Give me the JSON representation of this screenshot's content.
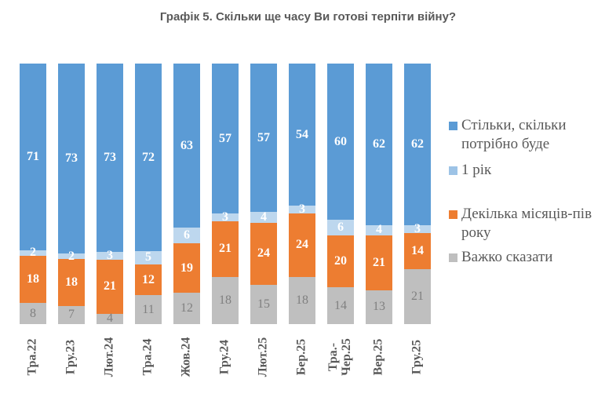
{
  "title": "Графік 5. Скільки ще часу Ви готові терпіти війну?",
  "colors": {
    "blue": "#5B9BD5",
    "light_blue_bar": "#BDD7EE",
    "light_blue_legend": "#9DC3E6",
    "orange": "#ED7D31",
    "gray": "#BFBFBF",
    "text_gray": "#595959",
    "gray_value_label": "#808080",
    "white_value_label": "#FFFFFF"
  },
  "chart_data": {
    "type": "bar",
    "stacked": true,
    "normalized_to_100": true,
    "grid": false,
    "legend_position": "right",
    "title": "Графік 5. Скільки ще часу Ви готові терпіти війну?",
    "xlabel": "",
    "ylabel": "",
    "categories": [
      "Тра.22",
      "Гру.23",
      "Лют.24",
      "Тра.24",
      "Жов.24",
      "Гру.24",
      "Лют.25",
      "Бер.25",
      "Тра.-\nЧер.25",
      "Вер.25",
      "Гру.25"
    ],
    "series": [
      {
        "name": "Стільки, скільки потрібно буде",
        "color": "#5B9BD5",
        "label_color": "#FFFFFF",
        "values": [
          71,
          73,
          73,
          72,
          63,
          57,
          57,
          54,
          60,
          62,
          62
        ]
      },
      {
        "name": "1 рік",
        "color": "#BDD7EE",
        "label_color": "#FFFFFF",
        "values": [
          2,
          2,
          3,
          5,
          6,
          3,
          4,
          3,
          6,
          4,
          3
        ]
      },
      {
        "name": "Декілька місяців-пів року",
        "color": "#ED7D31",
        "label_color": "#FFFFFF",
        "values": [
          18,
          18,
          21,
          12,
          19,
          21,
          24,
          24,
          20,
          21,
          14
        ]
      },
      {
        "name": "Важко сказати",
        "color": "#BFBFBF",
        "label_color": "#808080",
        "values": [
          8,
          7,
          4,
          11,
          12,
          18,
          15,
          18,
          14,
          13,
          21
        ]
      }
    ]
  },
  "legend": {
    "items": [
      {
        "label": "Стільки, скільки потрібно буде",
        "color": "#5B9BD5"
      },
      {
        "label": "1 рік",
        "color": "#9DC3E6"
      },
      {
        "label": "Декілька місяців-пів року",
        "color": "#ED7D31"
      },
      {
        "label": "Важко сказати",
        "color": "#BFBFBF"
      }
    ]
  }
}
